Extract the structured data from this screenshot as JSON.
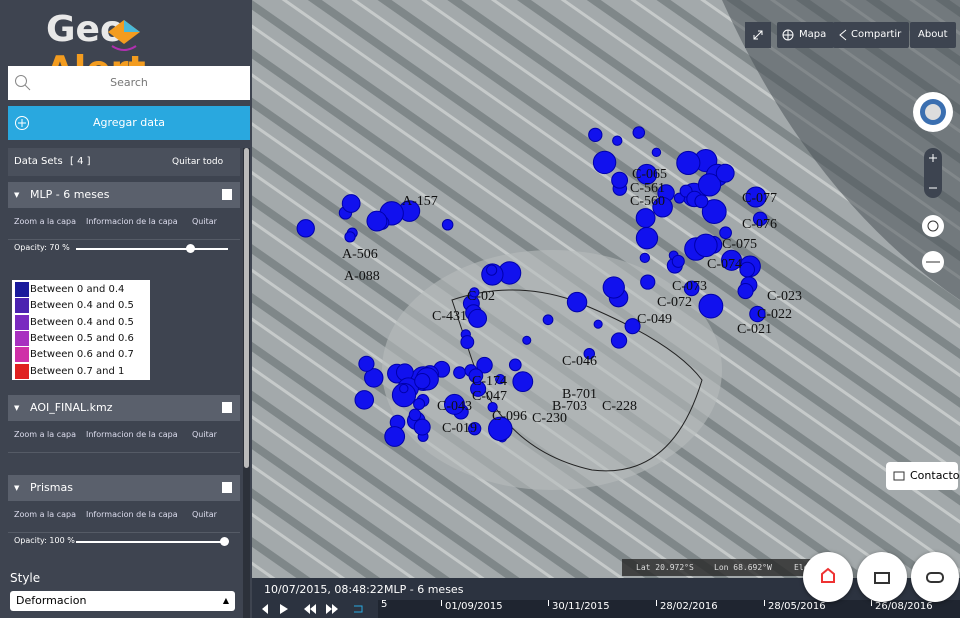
{
  "header": {
    "logo_left": "Geo",
    "logo_right": "Alert"
  },
  "search": {
    "placeholder": "Search"
  },
  "add_data": "Agregar data",
  "datasets": {
    "title": "Data Sets",
    "count": "[ 4 ]",
    "clear": "Quitar todo"
  },
  "layers": [
    {
      "name": "MLP - 6 meses",
      "zoom": "Zoom a la capa",
      "info": "Informacion de la capa",
      "remove": "Quitar",
      "opacity": "Opacity: 70 %",
      "legend": [
        {
          "label": "Between 0 and 0.4",
          "color": "#1a1a9c"
        },
        {
          "label": "Between 0.4 and 0.5",
          "color": "#4b22b0"
        },
        {
          "label": "Between 0.4 and 0.5",
          "color": "#7a2ac0"
        },
        {
          "label": "Between 0.5 and 0.6",
          "color": "#a830c0"
        },
        {
          "label": "Between 0.6 and 0.7",
          "color": "#cf30a8"
        },
        {
          "label": "Between 0.7 and 1",
          "color": "#e02020"
        }
      ]
    },
    {
      "name": "AOI_FINAL.kmz",
      "zoom": "Zoom a la capa",
      "info": "Informacion de la capa",
      "remove": "Quitar"
    },
    {
      "name": "Prismas",
      "zoom": "Zoom a la capa",
      "info": "Informacion de la capa",
      "remove": "Quitar",
      "opacity": "Opacity: 100 %"
    }
  ],
  "style": {
    "label": "Style",
    "value": "Deformacion"
  },
  "toolbar": {
    "mapa": "Mapa",
    "share": "Compartir",
    "about": "About"
  },
  "contact": "Contacto",
  "coords": {
    "lat": "Lat 20.972°S",
    "lon": "Lon 68.692°W",
    "elev": "Ele"
  },
  "timeline": {
    "datetime": "10/07/2015, 08:48:22",
    "layer": "MLP - 6 meses",
    "start": "5",
    "dates": [
      "01/09/2015",
      "30/11/2015",
      "28/02/2016",
      "28/05/2016",
      "26/08/2016"
    ]
  },
  "map_labels": [
    "A-157",
    "A-506",
    "A-088",
    "C-065",
    "C-561",
    "C-560",
    "C-077",
    "C-076",
    "C-075",
    "C-074",
    "C-073",
    "C-072",
    "C-049",
    "C-431",
    "C-02",
    "C-023",
    "C-022",
    "C-021",
    "C-046",
    "C-174",
    "C-047",
    "C-043",
    "C-019",
    "C-096",
    "B-703",
    "B-701",
    "C-230",
    "C-228"
  ]
}
